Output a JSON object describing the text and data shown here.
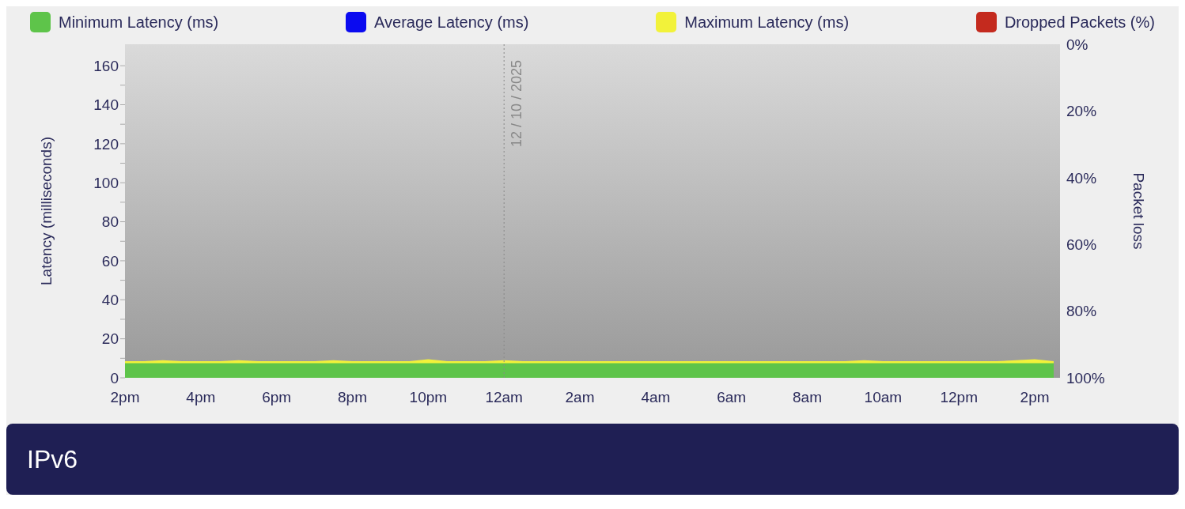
{
  "chart_data": {
    "type": "area",
    "title": "IPv6",
    "ylabel": "Latency  (milliseconds)",
    "y2label": "Packet loss",
    "legend": "top",
    "x": [
      "2025-10-11T14:00",
      "2025-10-11T14:30",
      "2025-10-11T15:00",
      "2025-10-11T15:30",
      "2025-10-11T16:00",
      "2025-10-11T16:30",
      "2025-10-11T17:00",
      "2025-10-11T17:30",
      "2025-10-11T18:00",
      "2025-10-11T18:30",
      "2025-10-11T19:00",
      "2025-10-11T19:30",
      "2025-10-11T20:00",
      "2025-10-11T20:30",
      "2025-10-11T21:00",
      "2025-10-11T21:30",
      "2025-10-11T22:00",
      "2025-10-11T22:30",
      "2025-10-11T23:00",
      "2025-10-11T23:30",
      "2025-10-12T00:00",
      "2025-10-12T00:30",
      "2025-10-12T01:00",
      "2025-10-12T01:30",
      "2025-10-12T02:00",
      "2025-10-12T02:30",
      "2025-10-12T03:00",
      "2025-10-12T03:30",
      "2025-10-12T04:00",
      "2025-10-12T04:30",
      "2025-10-12T05:00",
      "2025-10-12T05:30",
      "2025-10-12T06:00",
      "2025-10-12T06:30",
      "2025-10-12T07:00",
      "2025-10-12T07:30",
      "2025-10-12T08:00",
      "2025-10-12T08:30",
      "2025-10-12T09:00",
      "2025-10-12T09:30",
      "2025-10-12T10:00",
      "2025-10-12T10:30",
      "2025-10-12T11:00",
      "2025-10-12T11:30",
      "2025-10-12T12:00",
      "2025-10-12T12:30",
      "2025-10-12T13:00",
      "2025-10-12T13:30",
      "2025-10-12T14:00",
      "2025-10-12T14:30"
    ],
    "series": [
      {
        "name": "Minimum Latency (ms)",
        "color": "#5ec44a",
        "values": [
          7.5,
          7.5,
          7.5,
          7.5,
          7.5,
          7.5,
          7.5,
          7.5,
          7.5,
          7.5,
          7.5,
          7.5,
          7.5,
          7.5,
          7.5,
          7.5,
          7.5,
          7.5,
          7.5,
          7.5,
          7.5,
          7.5,
          7.5,
          7.5,
          7.5,
          7.5,
          7.5,
          7.5,
          7.5,
          7.5,
          7.5,
          7.5,
          7.5,
          7.5,
          7.5,
          7.5,
          7.5,
          7.5,
          7.5,
          7.5,
          7.5,
          7.5,
          7.5,
          7.5,
          7.5,
          7.5,
          7.5,
          7.5,
          7.5,
          7.5
        ]
      },
      {
        "name": "Average Latency (ms)",
        "color": "#0a0af0",
        "values": [
          null,
          null,
          null,
          null,
          null,
          null,
          null,
          null,
          null,
          null,
          null,
          null,
          null,
          null,
          null,
          null,
          null,
          null,
          null,
          null,
          null,
          null,
          null,
          null,
          null,
          null,
          null,
          null,
          null,
          null,
          null,
          null,
          null,
          null,
          null,
          null,
          null,
          null,
          null,
          null,
          null,
          null,
          null,
          null,
          null,
          null,
          null,
          null,
          null,
          null
        ]
      },
      {
        "name": "Maximum Latency (ms)",
        "color": "#f2f23a",
        "values": [
          8.5,
          8.5,
          9,
          8.5,
          8.5,
          8.5,
          9,
          8.5,
          8.5,
          8.5,
          8.5,
          9,
          8.5,
          8.5,
          8.5,
          8.5,
          9.5,
          8.5,
          8.5,
          8.5,
          9,
          8.5,
          8.5,
          8.5,
          8.5,
          8.5,
          8.5,
          8.5,
          8.5,
          8.5,
          8.5,
          8.5,
          8.5,
          8.5,
          8.5,
          8.5,
          8.5,
          8.5,
          8.5,
          9,
          8.5,
          8.5,
          8.5,
          8.5,
          8.5,
          8.5,
          8.5,
          9,
          9.5,
          8.5
        ]
      },
      {
        "name": "Dropped Packets (%)",
        "color": "#c42a1e",
        "values": [
          null,
          null,
          null,
          null,
          null,
          null,
          null,
          null,
          null,
          null,
          null,
          null,
          null,
          null,
          null,
          null,
          null,
          null,
          null,
          null,
          null,
          null,
          null,
          null,
          null,
          null,
          null,
          null,
          null,
          null,
          null,
          null,
          null,
          null,
          null,
          null,
          null,
          null,
          null,
          null,
          null,
          null,
          null,
          null,
          null,
          null,
          null,
          null,
          null,
          null
        ]
      }
    ],
    "xlim": [
      "2025-10-11T14:00",
      "2025-10-12T14:40"
    ],
    "xticks": [
      {
        "value": "2025-10-11T14:00",
        "label": "2pm"
      },
      {
        "value": "2025-10-11T16:00",
        "label": "4pm"
      },
      {
        "value": "2025-10-11T18:00",
        "label": "6pm"
      },
      {
        "value": "2025-10-11T20:00",
        "label": "8pm"
      },
      {
        "value": "2025-10-11T22:00",
        "label": "10pm"
      },
      {
        "value": "2025-10-12T00:00",
        "label": "12am"
      },
      {
        "value": "2025-10-12T02:00",
        "label": "2am"
      },
      {
        "value": "2025-10-12T04:00",
        "label": "4am"
      },
      {
        "value": "2025-10-12T06:00",
        "label": "6am"
      },
      {
        "value": "2025-10-12T08:00",
        "label": "8am"
      },
      {
        "value": "2025-10-12T10:00",
        "label": "10am"
      },
      {
        "value": "2025-10-12T12:00",
        "label": "12pm"
      },
      {
        "value": "2025-10-12T14:00",
        "label": "2pm"
      }
    ],
    "ylim": [
      0,
      171
    ],
    "yticks": [
      0,
      {
        "value": 10,
        "label": null
      },
      20,
      {
        "value": 30,
        "label": null
      },
      40,
      {
        "value": 50,
        "label": null
      },
      60,
      {
        "value": 70,
        "label": null
      },
      80,
      {
        "value": 90,
        "label": null
      },
      100,
      {
        "value": 110,
        "label": null
      },
      120,
      {
        "value": 130,
        "label": null
      },
      140,
      {
        "value": 150,
        "label": null
      },
      160
    ],
    "y2lim": [
      100,
      0
    ],
    "y2ticks": [
      {
        "value": 0,
        "label": "0%"
      },
      {
        "value": 20,
        "label": "20%"
      },
      {
        "value": 40,
        "label": "40%"
      },
      {
        "value": 60,
        "label": "60%"
      },
      {
        "value": 80,
        "label": "80%"
      },
      {
        "value": 100,
        "label": "100%"
      }
    ],
    "ref_lines": [
      {
        "axis": "x",
        "value": "2025-10-12T00:00",
        "label": "12 / 10 / 2025",
        "color": "#888888",
        "line_style": "dotted"
      }
    ],
    "grid": false
  }
}
